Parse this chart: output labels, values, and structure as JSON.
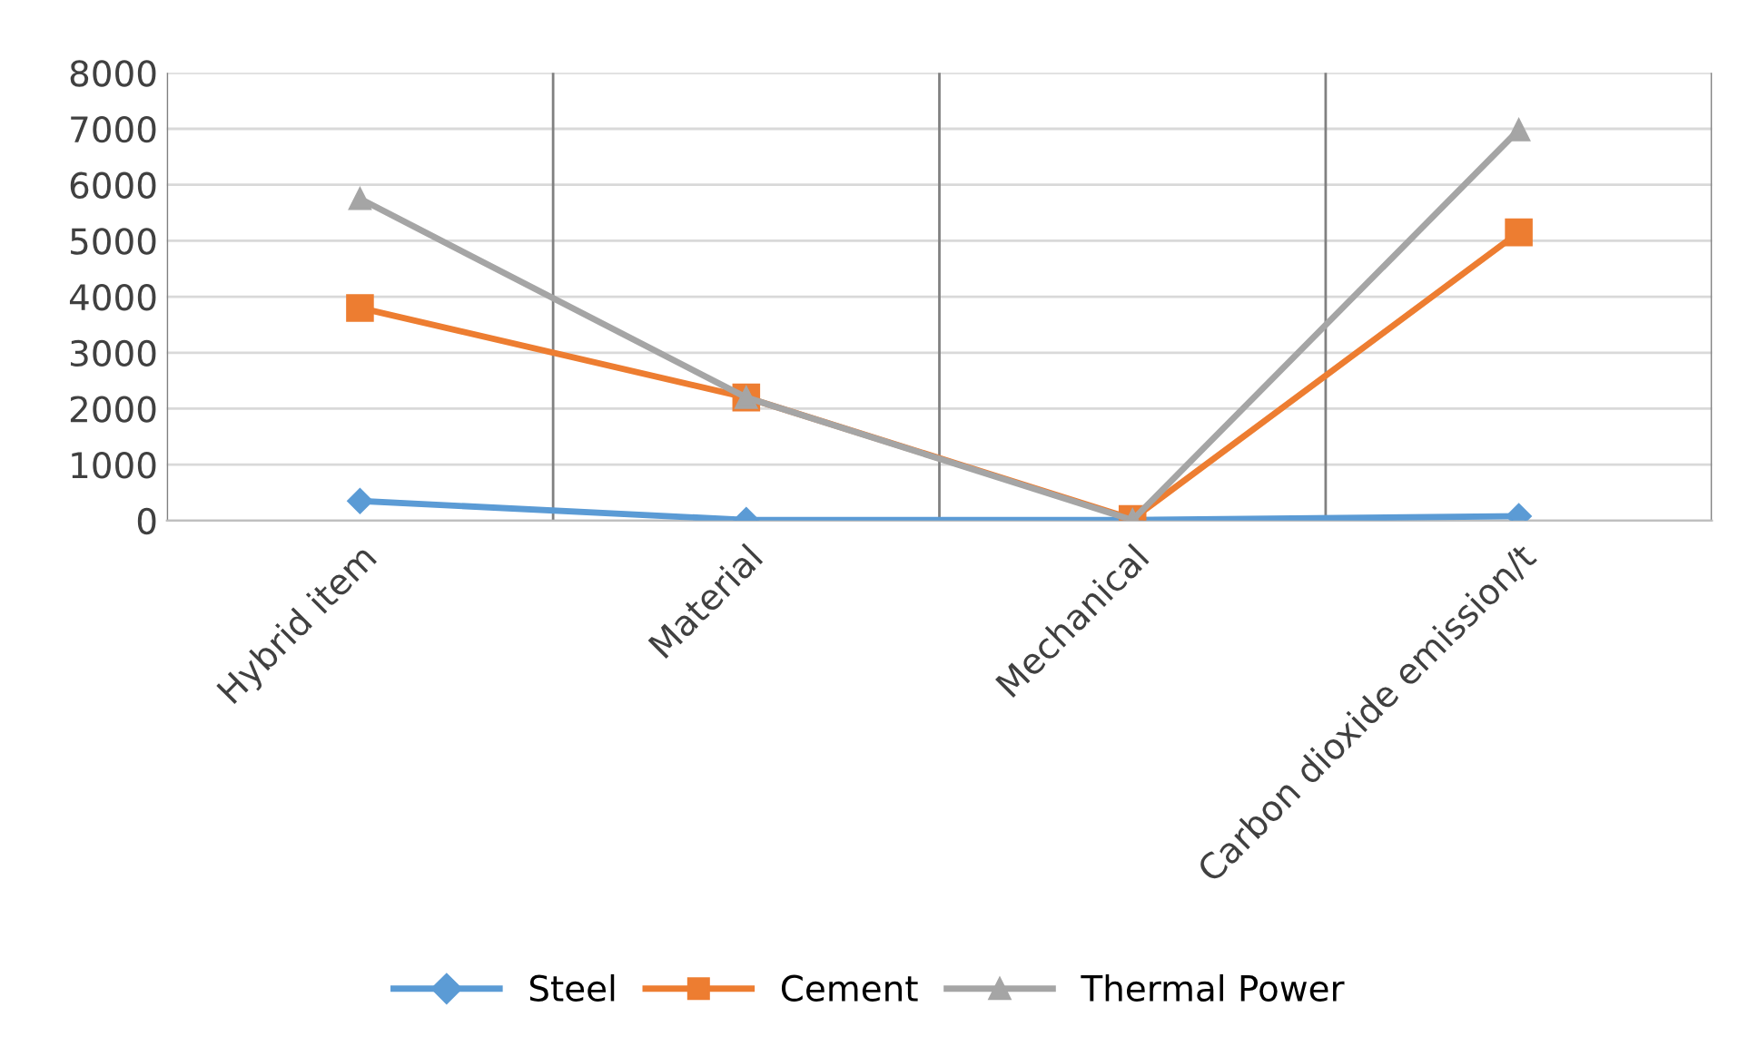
{
  "chart_data": {
    "type": "line",
    "categories": [
      "Hybrid item",
      "Material",
      "Mechanical",
      "Carbon dioxide emission/t"
    ],
    "series": [
      {
        "name": "Steel",
        "color": "#5b9bd5",
        "marker": "diamond",
        "values": [
          350,
          10,
          10,
          80
        ]
      },
      {
        "name": "Cement",
        "color": "#ed7d31",
        "marker": "square",
        "values": [
          3800,
          2200,
          30,
          5150
        ]
      },
      {
        "name": "Thermal Power",
        "color": "#a5a5a5",
        "marker": "triangle",
        "values": [
          5750,
          2200,
          10,
          6980
        ]
      }
    ],
    "ylim": [
      0,
      8000
    ],
    "yticks": [
      0,
      1000,
      2000,
      3000,
      4000,
      5000,
      6000,
      7000,
      8000
    ],
    "grid": true,
    "legend": "bottom",
    "line_style": "solid"
  }
}
